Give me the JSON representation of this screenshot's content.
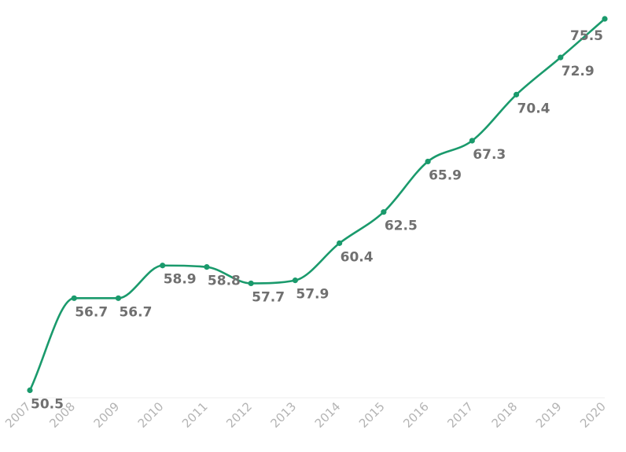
{
  "chart_data": {
    "type": "line",
    "title": "",
    "xlabel": "",
    "ylabel": "",
    "x": [
      "2007",
      "2008",
      "2009",
      "2010",
      "2011",
      "2012",
      "2013",
      "2014",
      "2015",
      "2016",
      "2017",
      "2018",
      "2019",
      "2020"
    ],
    "series": [
      {
        "values": [
          50.5,
          56.7,
          56.7,
          58.9,
          58.8,
          57.7,
          57.9,
          60.4,
          62.5,
          65.9,
          67.3,
          70.4,
          72.9,
          75.5
        ]
      }
    ],
    "line_color": "#1a9a6c",
    "label_color": "#707070",
    "tick_color": "#b4b4b4",
    "grid": false,
    "legend": "none",
    "curve": "smooth",
    "markers": true,
    "data_labels": true
  }
}
